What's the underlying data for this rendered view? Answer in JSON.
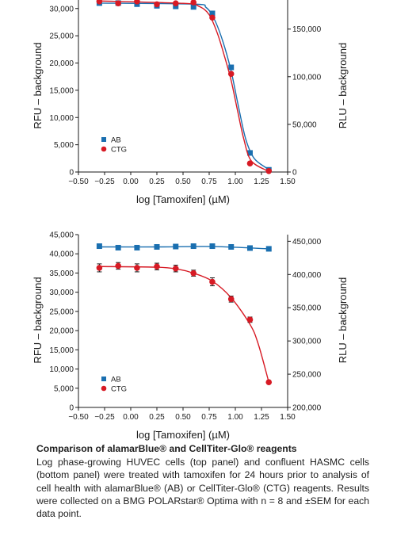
{
  "chart_data": [
    {
      "type": "scatter",
      "panel": "top",
      "title": "",
      "xlabel": "log [Tamoxifen] (µM)",
      "ylabel": "RFU – background",
      "y2label": "RLU – background",
      "xlim": [
        -0.5,
        1.5
      ],
      "ylim": [
        0,
        32000
      ],
      "y2lim": [
        0,
        183000
      ],
      "x_ticks": [
        -0.5,
        -0.25,
        0.0,
        0.25,
        0.5,
        0.75,
        1.0,
        1.25,
        1.5
      ],
      "x_tick_labels": [
        "−0.50",
        "−0.25",
        "0.00",
        "0.25",
        "0.50",
        "0.75",
        "1.00",
        "1.25",
        "1.50"
      ],
      "y_ticks": [
        0,
        5000,
        10000,
        15000,
        20000,
        25000,
        30000
      ],
      "y_tick_labels": [
        "0",
        "5,000",
        "10,000",
        "15,000",
        "20,000",
        "25,000",
        "30,000"
      ],
      "y2_ticks": [
        0,
        50000,
        100000,
        150000
      ],
      "y2_tick_labels": [
        "0",
        "50,000",
        "100,000",
        "150,000"
      ],
      "grid": false,
      "legend_position": "bottom-left",
      "series": [
        {
          "name": "AB",
          "axis": "left",
          "marker": "square",
          "color": "#1a6fb0",
          "x": [
            -0.3,
            -0.12,
            0.06,
            0.25,
            0.43,
            0.6,
            0.78,
            0.96,
            1.14,
            1.32
          ],
          "y": [
            31000,
            31000,
            30800,
            30500,
            30400,
            30300,
            29100,
            19200,
            3500,
            400
          ],
          "curve": [
            [
              -0.3,
              31000
            ],
            [
              0.6,
              30800
            ],
            [
              0.72,
              30200
            ],
            [
              0.8,
              28000
            ],
            [
              0.88,
              24000
            ],
            [
              0.96,
              18500
            ],
            [
              1.03,
              12000
            ],
            [
              1.1,
              6000
            ],
            [
              1.18,
              2500
            ],
            [
              1.3,
              700
            ]
          ]
        },
        {
          "name": "CTG",
          "axis": "right",
          "marker": "circle",
          "color": "#d71a24",
          "x": [
            -0.3,
            -0.12,
            0.06,
            0.25,
            0.43,
            0.6,
            0.78,
            0.96,
            1.14,
            1.32
          ],
          "y": [
            179000,
            177000,
            179000,
            176000,
            177000,
            178000,
            162000,
            103000,
            9000,
            1000
          ],
          "curve": [
            [
              -0.3,
              179500
            ],
            [
              0.5,
              177000
            ],
            [
              0.65,
              174000
            ],
            [
              0.75,
              165000
            ],
            [
              0.83,
              145000
            ],
            [
              0.9,
              120000
            ],
            [
              0.96,
              96000
            ],
            [
              1.02,
              65000
            ],
            [
              1.08,
              35000
            ],
            [
              1.15,
              12000
            ],
            [
              1.3,
              1500
            ]
          ]
        }
      ]
    },
    {
      "type": "scatter",
      "panel": "bottom",
      "title": "",
      "xlabel": "log [Tamoxifen] (µM)",
      "ylabel": "RFU – background",
      "y2label": "RLU – background",
      "xlim": [
        -0.5,
        1.5
      ],
      "ylim": [
        0,
        45000
      ],
      "y2lim": [
        200000,
        460000
      ],
      "x_ticks": [
        -0.5,
        -0.25,
        0.0,
        0.25,
        0.5,
        0.75,
        1.0,
        1.25,
        1.5
      ],
      "x_tick_labels": [
        "−0.50",
        "−0.25",
        "0.00",
        "0.25",
        "0.50",
        "0.75",
        "1.00",
        "1.25",
        "1.50"
      ],
      "y_ticks": [
        0,
        5000,
        10000,
        15000,
        20000,
        25000,
        30000,
        35000,
        40000,
        45000
      ],
      "y_tick_labels": [
        "0",
        "5,000",
        "10,000",
        "15,000",
        "20,000",
        "25,000",
        "30,000",
        "35,000",
        "40,000",
        "45,000"
      ],
      "y2_ticks": [
        200000,
        250000,
        300000,
        350000,
        400000,
        450000
      ],
      "y2_tick_labels": [
        "200,000",
        "250,000",
        "300,000",
        "350,000",
        "400,000",
        "450,000"
      ],
      "grid": false,
      "legend_position": "bottom-left",
      "series": [
        {
          "name": "AB",
          "axis": "left",
          "marker": "square",
          "color": "#1a6fb0",
          "x": [
            -0.3,
            -0.12,
            0.06,
            0.25,
            0.43,
            0.6,
            0.78,
            0.96,
            1.14,
            1.32
          ],
          "y": [
            42000,
            41600,
            41600,
            41800,
            41900,
            42000,
            42000,
            41800,
            41500,
            41300
          ],
          "curve": [
            [
              -0.3,
              41800
            ],
            [
              0.3,
              41800
            ],
            [
              0.8,
              41900
            ],
            [
              1.32,
              41300
            ]
          ]
        },
        {
          "name": "CTG",
          "axis": "right",
          "marker": "circle",
          "color": "#d71a24",
          "x": [
            -0.3,
            -0.12,
            0.06,
            0.25,
            0.43,
            0.6,
            0.78,
            0.96,
            1.14,
            1.32
          ],
          "y": [
            410000,
            413000,
            410000,
            412000,
            409000,
            402000,
            389000,
            363000,
            332000,
            238000
          ],
          "err": [
            6000,
            5000,
            6000,
            5000,
            5000,
            4500,
            6000,
            4500,
            4000,
            0
          ],
          "curve": [
            [
              -0.3,
              412000
            ],
            [
              0.25,
              411000
            ],
            [
              0.45,
              408000
            ],
            [
              0.6,
              402000
            ],
            [
              0.78,
              390000
            ],
            [
              0.96,
              365000
            ],
            [
              1.14,
              325000
            ],
            [
              1.22,
              295000
            ],
            [
              1.32,
              238000
            ]
          ]
        }
      ]
    }
  ],
  "caption": {
    "title": "Comparison of alamarBlue® and CellTiter-Glo® reagents",
    "body": "Log phase-growing HUVEC cells (top panel) and confluent HASMC cells (bottom panel) were treated with tamoxifen for 24 hours prior to analysis of cell health with alamarBlue® (AB) or CellTiter-Glo® (CTG) reagents. Results were collected on a BMG POLARstar® Optima with n = 8 and ±SEM for each data point."
  }
}
